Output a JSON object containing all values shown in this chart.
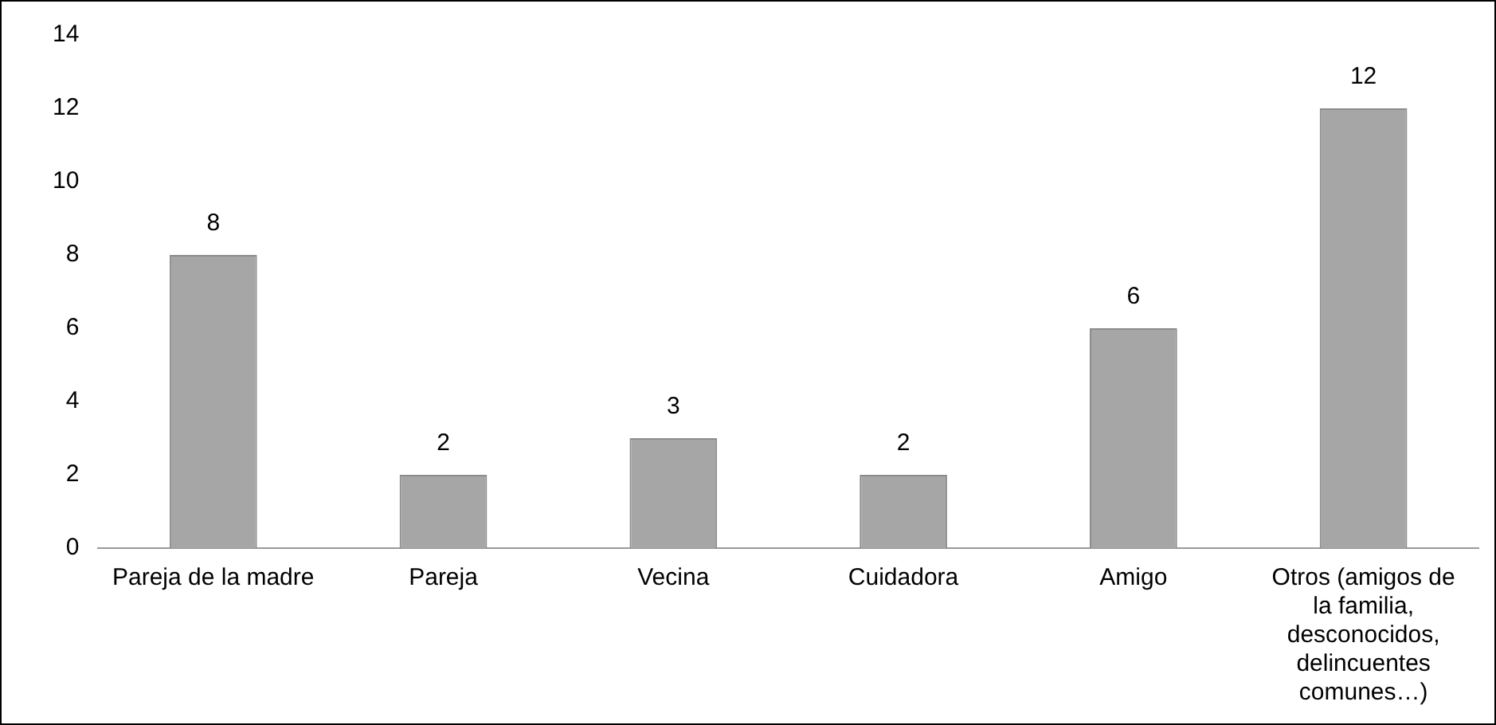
{
  "chart_data": {
    "type": "bar",
    "categories": [
      "Pareja de la madre",
      "Pareja",
      "Vecina",
      "Cuidadora",
      "Amigo",
      "Otros (amigos de la familia, desconocidos, delincuentes comunes…)"
    ],
    "values": [
      8,
      2,
      3,
      2,
      6,
      12
    ],
    "color": "#a6a6a6",
    "ylim": [
      0,
      14
    ],
    "yticks": [
      0,
      2,
      4,
      6,
      8,
      10,
      12,
      14
    ],
    "grid": false,
    "data_labels": true
  }
}
